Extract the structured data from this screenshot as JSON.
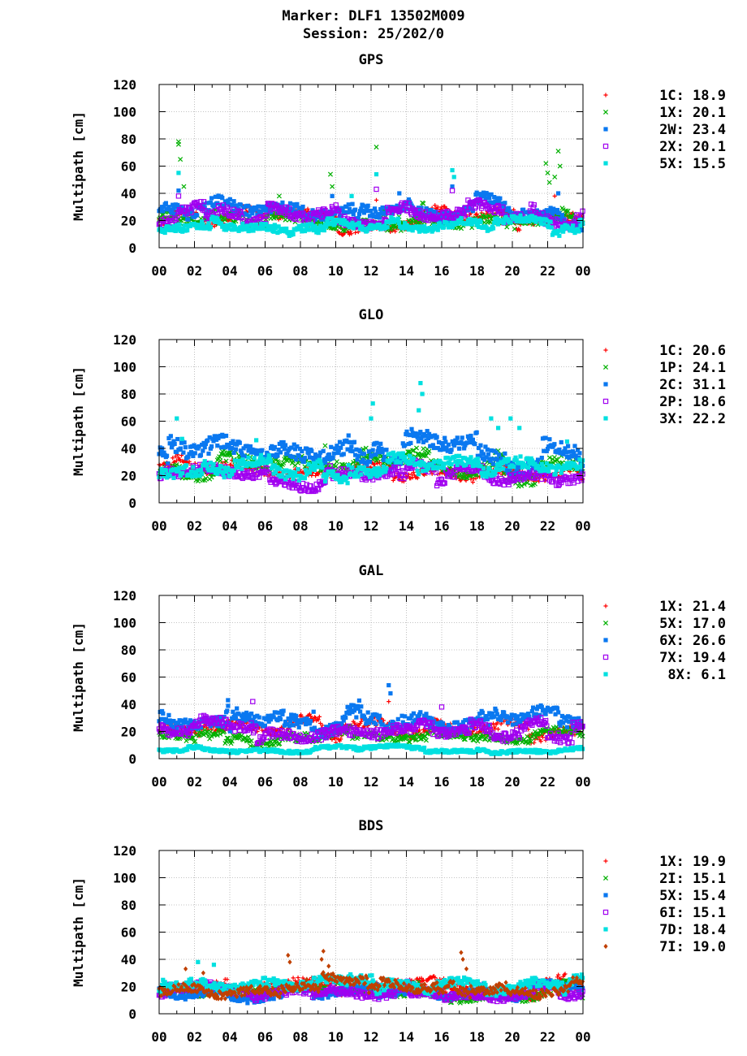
{
  "header": {
    "line1": "Marker: DLF1 13502M009",
    "line2": "Session: 25/202/0"
  },
  "chart_data": [
    {
      "type": "scatter",
      "title": "GPS",
      "ylabel": "Multipath [cm]",
      "xlabel": "",
      "ylim": [
        0,
        120
      ],
      "xlim": [
        0,
        24
      ],
      "yticks": [
        "0",
        "20",
        "40",
        "60",
        "80",
        "100",
        "120"
      ],
      "xticks": [
        "00",
        "02",
        "04",
        "06",
        "08",
        "10",
        "12",
        "14",
        "16",
        "18",
        "20",
        "22",
        "00"
      ],
      "grid": true,
      "legend_position": "right",
      "series": [
        {
          "name": "1C",
          "value": "18.9",
          "legend": "1C: 18.9",
          "color": "#ff0000",
          "marker": "plus",
          "level": 18,
          "spikes": [
            [
              12.3,
              35
            ],
            [
              22.4,
              38
            ]
          ]
        },
        {
          "name": "1X",
          "value": "20.1",
          "legend": "1X: 20.1",
          "color": "#00b000",
          "marker": "cross",
          "level": 20,
          "spikes": [
            [
              1.1,
              78
            ],
            [
              1.1,
              76
            ],
            [
              1.2,
              65
            ],
            [
              1.4,
              45
            ],
            [
              6.8,
              38
            ],
            [
              9.7,
              54
            ],
            [
              9.8,
              45
            ],
            [
              12.3,
              74
            ],
            [
              21.9,
              62
            ],
            [
              22.0,
              55
            ],
            [
              22.1,
              48
            ],
            [
              22.6,
              71
            ],
            [
              22.7,
              60
            ],
            [
              22.4,
              52
            ]
          ]
        },
        {
          "name": "2W",
          "value": "23.4",
          "legend": "2W: 23.4",
          "color": "#0a78f0",
          "marker": "square",
          "level": 23,
          "spikes": [
            [
              1.1,
              42
            ],
            [
              9.8,
              38
            ],
            [
              13.6,
              40
            ],
            [
              16.6,
              45
            ],
            [
              22.6,
              40
            ]
          ]
        },
        {
          "name": "2X",
          "value": "20.1",
          "legend": "2X: 20.1",
          "color": "#a000f0",
          "marker": "osquare",
          "level": 20,
          "spikes": [
            [
              1.1,
              38
            ],
            [
              12.3,
              43
            ],
            [
              16.6,
              42
            ],
            [
              18.1,
              35
            ]
          ]
        },
        {
          "name": "5X",
          "value": "15.5",
          "legend": "5X: 15.5",
          "color": "#00e0e0",
          "marker": "square",
          "level": 15,
          "spikes": [
            [
              1.1,
              55
            ],
            [
              12.3,
              54
            ],
            [
              16.6,
              57
            ],
            [
              16.7,
              52
            ],
            [
              10.9,
              38
            ]
          ]
        }
      ]
    },
    {
      "type": "scatter",
      "title": "GLO",
      "ylabel": "Multipath [cm]",
      "xlabel": "",
      "ylim": [
        0,
        120
      ],
      "xlim": [
        0,
        24
      ],
      "yticks": [
        "0",
        "20",
        "40",
        "60",
        "80",
        "100",
        "120"
      ],
      "xticks": [
        "00",
        "02",
        "04",
        "06",
        "08",
        "10",
        "12",
        "14",
        "16",
        "18",
        "20",
        "22",
        "00"
      ],
      "grid": true,
      "legend_position": "right",
      "series": [
        {
          "name": "1C",
          "value": "20.6",
          "legend": "1C: 20.6",
          "color": "#ff0000",
          "marker": "plus",
          "level": 20,
          "spikes": []
        },
        {
          "name": "1P",
          "value": "24.1",
          "legend": "1P: 24.1",
          "color": "#00b000",
          "marker": "cross",
          "level": 24,
          "spikes": [
            [
              9.4,
              42
            ]
          ]
        },
        {
          "name": "2C",
          "value": "31.1",
          "legend": "2C: 31.1",
          "color": "#0a78f0",
          "marker": "square",
          "level": 31,
          "spikes": []
        },
        {
          "name": "2P",
          "value": "18.6",
          "legend": "2P: 18.6",
          "color": "#a000f0",
          "marker": "osquare",
          "level": 18,
          "spikes": []
        },
        {
          "name": "3X",
          "value": "22.2",
          "legend": "3X: 22.2",
          "color": "#00e0e0",
          "marker": "square",
          "level": 22,
          "spikes": [
            [
              1.0,
              62
            ],
            [
              1.3,
              47
            ],
            [
              12.1,
              73
            ],
            [
              12.0,
              62
            ],
            [
              14.8,
              88
            ],
            [
              14.9,
              80
            ],
            [
              14.7,
              68
            ],
            [
              18.8,
              62
            ],
            [
              19.9,
              62
            ],
            [
              19.2,
              55
            ],
            [
              20.4,
              55
            ],
            [
              23.1,
              45
            ],
            [
              5.5,
              46
            ]
          ]
        }
      ]
    },
    {
      "type": "scatter",
      "title": "GAL",
      "ylabel": "Multipath [cm]",
      "xlabel": "",
      "ylim": [
        0,
        120
      ],
      "xlim": [
        0,
        24
      ],
      "yticks": [
        "0",
        "20",
        "40",
        "60",
        "80",
        "100",
        "120"
      ],
      "xticks": [
        "00",
        "02",
        "04",
        "06",
        "08",
        "10",
        "12",
        "14",
        "16",
        "18",
        "20",
        "22",
        "00"
      ],
      "grid": true,
      "legend_position": "right",
      "series": [
        {
          "name": "1X",
          "value": "21.4",
          "legend": "1X: 21.4",
          "color": "#ff0000",
          "marker": "plus",
          "level": 20,
          "spikes": [
            [
              13.0,
              42
            ]
          ]
        },
        {
          "name": "5X",
          "value": "17.0",
          "legend": "5X: 17.0",
          "color": "#00b000",
          "marker": "cross",
          "level": 15,
          "spikes": []
        },
        {
          "name": "6X",
          "value": "26.6",
          "legend": "6X: 26.6",
          "color": "#0a78f0",
          "marker": "square",
          "level": 26,
          "spikes": [
            [
              3.9,
              43
            ],
            [
              13.0,
              54
            ],
            [
              13.1,
              48
            ]
          ]
        },
        {
          "name": "7X",
          "value": "19.4",
          "legend": "7X: 19.4",
          "color": "#a000f0",
          "marker": "osquare",
          "level": 20,
          "spikes": [
            [
              5.3,
              42
            ],
            [
              16.0,
              38
            ]
          ]
        },
        {
          "name": "8X",
          "value": "6.1",
          "legend": "8X:  6.1",
          "color": "#00e0e0",
          "marker": "square",
          "level": 6,
          "spikes": []
        }
      ]
    },
    {
      "type": "scatter",
      "title": "BDS",
      "ylabel": "Multipath [cm]",
      "xlabel": "",
      "ylim": [
        0,
        120
      ],
      "xlim": [
        0,
        24
      ],
      "yticks": [
        "0",
        "20",
        "40",
        "60",
        "80",
        "100",
        "120"
      ],
      "xticks": [
        "00",
        "02",
        "04",
        "06",
        "08",
        "10",
        "12",
        "14",
        "16",
        "18",
        "20",
        "22",
        "00"
      ],
      "grid": true,
      "legend_position": "right",
      "series": [
        {
          "name": "1X",
          "value": "19.9",
          "legend": "1X: 19.9",
          "color": "#ff0000",
          "marker": "plus",
          "level": 18,
          "spikes": []
        },
        {
          "name": "2I",
          "value": "15.1",
          "legend": "2I: 15.1",
          "color": "#00b000",
          "marker": "cross",
          "level": 15,
          "spikes": []
        },
        {
          "name": "5X",
          "value": "15.4",
          "legend": "5X: 15.4",
          "color": "#0a78f0",
          "marker": "square",
          "level": 15,
          "spikes": []
        },
        {
          "name": "6I",
          "value": "15.1",
          "legend": "6I: 15.1",
          "color": "#a000f0",
          "marker": "osquare",
          "level": 15,
          "spikes": []
        },
        {
          "name": "7D",
          "value": "18.4",
          "legend": "7D: 18.4",
          "color": "#00e0e0",
          "marker": "square",
          "level": 18,
          "spikes": [
            [
              2.2,
              38
            ],
            [
              3.1,
              36
            ]
          ]
        },
        {
          "name": "7I",
          "value": "19.0",
          "legend": "7I: 19.0",
          "color": "#c04000",
          "marker": "diamond",
          "level": 18,
          "spikes": [
            [
              7.3,
              43
            ],
            [
              7.4,
              38
            ],
            [
              9.3,
              46
            ],
            [
              9.2,
              40
            ],
            [
              9.6,
              35
            ],
            [
              17.1,
              45
            ],
            [
              17.2,
              40
            ],
            [
              17.4,
              33
            ],
            [
              1.5,
              33
            ],
            [
              2.5,
              30
            ]
          ]
        }
      ]
    }
  ]
}
